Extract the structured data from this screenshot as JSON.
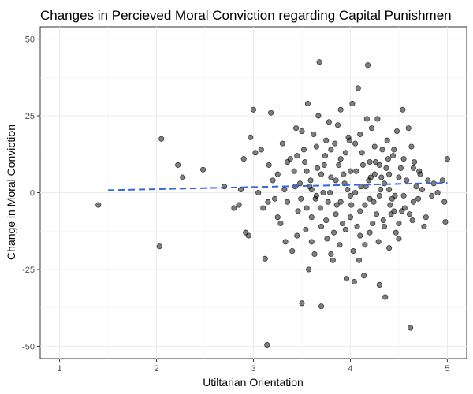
{
  "chart_data": {
    "type": "scatter",
    "title": "Changes in Percieved Moral Conviction regarding Capital Punishmen",
    "xlabel": "Utiltarian Orientation",
    "ylabel": "Change in Moral Conviction",
    "xlim": [
      0.8,
      5.2
    ],
    "ylim": [
      -54,
      54
    ],
    "x_ticks": [
      1,
      2,
      3,
      4,
      5
    ],
    "y_ticks": [
      -50,
      -25,
      0,
      25,
      50
    ],
    "grid": true,
    "point_color": "#000000",
    "point_opacity": 0.5,
    "trend_line": {
      "style": "dashed",
      "color": "#3366e6",
      "x": [
        1.5,
        5.0
      ],
      "y": [
        0.8,
        3.2
      ]
    },
    "points": [
      {
        "x": 1.4,
        "y": -4
      },
      {
        "x": 2.03,
        "y": -17.5
      },
      {
        "x": 2.05,
        "y": 17.5
      },
      {
        "x": 2.22,
        "y": 9
      },
      {
        "x": 2.27,
        "y": 5
      },
      {
        "x": 2.48,
        "y": 7.5
      },
      {
        "x": 2.7,
        "y": 2
      },
      {
        "x": 2.8,
        "y": -5
      },
      {
        "x": 2.85,
        "y": -4
      },
      {
        "x": 2.87,
        "y": 1
      },
      {
        "x": 2.9,
        "y": 11
      },
      {
        "x": 2.92,
        "y": -13
      },
      {
        "x": 2.95,
        "y": -14
      },
      {
        "x": 2.97,
        "y": 18
      },
      {
        "x": 3.0,
        "y": 27
      },
      {
        "x": 3.02,
        "y": 13
      },
      {
        "x": 3.05,
        "y": 0
      },
      {
        "x": 3.08,
        "y": 14
      },
      {
        "x": 3.1,
        "y": -5
      },
      {
        "x": 3.12,
        "y": -21.5
      },
      {
        "x": 3.14,
        "y": -49.5
      },
      {
        "x": 3.16,
        "y": 9
      },
      {
        "x": 3.18,
        "y": 26
      },
      {
        "x": 3.2,
        "y": 4
      },
      {
        "x": 3.22,
        "y": -2
      },
      {
        "x": 3.25,
        "y": 6
      },
      {
        "x": 3.28,
        "y": -10
      },
      {
        "x": 3.3,
        "y": 16
      },
      {
        "x": 3.32,
        "y": 1
      },
      {
        "x": 3.35,
        "y": -3
      },
      {
        "x": 3.38,
        "y": 11
      },
      {
        "x": 3.4,
        "y": -19
      },
      {
        "x": 3.42,
        "y": 7
      },
      {
        "x": 3.44,
        "y": 21
      },
      {
        "x": 3.46,
        "y": -6
      },
      {
        "x": 3.48,
        "y": 3
      },
      {
        "x": 3.5,
        "y": -36
      },
      {
        "x": 3.52,
        "y": 14
      },
      {
        "x": 3.54,
        "y": -12
      },
      {
        "x": 3.56,
        "y": 29
      },
      {
        "x": 3.58,
        "y": 2
      },
      {
        "x": 3.6,
        "y": -8
      },
      {
        "x": 3.62,
        "y": 19
      },
      {
        "x": 3.64,
        "y": -2
      },
      {
        "x": 3.66,
        "y": 8
      },
      {
        "x": 3.68,
        "y": 42.5
      },
      {
        "x": 3.7,
        "y": -37
      },
      {
        "x": 3.72,
        "y": 0
      },
      {
        "x": 3.74,
        "y": 12
      },
      {
        "x": 3.76,
        "y": -15
      },
      {
        "x": 3.78,
        "y": 23
      },
      {
        "x": 3.8,
        "y": 5
      },
      {
        "x": 3.82,
        "y": -22
      },
      {
        "x": 3.84,
        "y": 16
      },
      {
        "x": 3.86,
        "y": -4
      },
      {
        "x": 3.88,
        "y": 9
      },
      {
        "x": 3.9,
        "y": 27
      },
      {
        "x": 3.92,
        "y": -10
      },
      {
        "x": 3.94,
        "y": 3
      },
      {
        "x": 3.96,
        "y": -28
      },
      {
        "x": 3.98,
        "y": 18
      },
      {
        "x": 4.0,
        "y": -1
      },
      {
        "x": 4.02,
        "y": 29
      },
      {
        "x": 4.04,
        "y": -29
      },
      {
        "x": 4.06,
        "y": 7
      },
      {
        "x": 4.08,
        "y": 34
      },
      {
        "x": 4.1,
        "y": -6
      },
      {
        "x": 4.12,
        "y": 13
      },
      {
        "x": 4.14,
        "y": -27
      },
      {
        "x": 4.16,
        "y": 2
      },
      {
        "x": 4.18,
        "y": 41.5
      },
      {
        "x": 4.2,
        "y": -13
      },
      {
        "x": 4.22,
        "y": 21
      },
      {
        "x": 4.24,
        "y": -3
      },
      {
        "x": 4.26,
        "y": 10
      },
      {
        "x": 4.28,
        "y": 24
      },
      {
        "x": 4.3,
        "y": -30
      },
      {
        "x": 4.32,
        "y": 5
      },
      {
        "x": 4.34,
        "y": -9
      },
      {
        "x": 4.36,
        "y": -34
      },
      {
        "x": 4.38,
        "y": 17
      },
      {
        "x": 4.4,
        "y": 1
      },
      {
        "x": 4.42,
        "y": -7
      },
      {
        "x": 4.44,
        "y": 12
      },
      {
        "x": 4.46,
        "y": -1
      },
      {
        "x": 4.48,
        "y": 20
      },
      {
        "x": 4.5,
        "y": -15
      },
      {
        "x": 4.52,
        "y": 8
      },
      {
        "x": 4.54,
        "y": 27
      },
      {
        "x": 4.56,
        "y": -5
      },
      {
        "x": 4.58,
        "y": 4
      },
      {
        "x": 4.6,
        "y": 21
      },
      {
        "x": 4.62,
        "y": -44
      },
      {
        "x": 4.64,
        "y": -9
      },
      {
        "x": 4.66,
        "y": 10
      },
      {
        "x": 4.68,
        "y": 2
      },
      {
        "x": 4.7,
        "y": -2
      },
      {
        "x": 4.72,
        "y": 6
      },
      {
        "x": 4.74,
        "y": 1
      },
      {
        "x": 4.78,
        "y": -8
      },
      {
        "x": 4.8,
        "y": 4
      },
      {
        "x": 4.84,
        "y": -1
      },
      {
        "x": 4.9,
        "y": 0
      },
      {
        "x": 4.95,
        "y": 4
      },
      {
        "x": 4.97,
        "y": -3
      },
      {
        "x": 4.98,
        "y": -9.5
      },
      {
        "x": 5.0,
        "y": 11
      },
      {
        "x": 3.45,
        "y": 12
      },
      {
        "x": 3.55,
        "y": -5
      },
      {
        "x": 3.65,
        "y": 15
      },
      {
        "x": 3.75,
        "y": -9
      },
      {
        "x": 3.85,
        "y": 4
      },
      {
        "x": 3.95,
        "y": -12
      },
      {
        "x": 4.05,
        "y": 16
      },
      {
        "x": 4.15,
        "y": -4
      },
      {
        "x": 4.25,
        "y": 6
      },
      {
        "x": 4.35,
        "y": -11
      },
      {
        "x": 4.45,
        "y": 14
      },
      {
        "x": 4.55,
        "y": -1
      },
      {
        "x": 4.65,
        "y": 8
      },
      {
        "x": 3.5,
        "y": 20
      },
      {
        "x": 3.6,
        "y": -16
      },
      {
        "x": 3.7,
        "y": 6
      },
      {
        "x": 3.8,
        "y": -20
      },
      {
        "x": 3.9,
        "y": 11
      },
      {
        "x": 4.0,
        "y": -8
      },
      {
        "x": 4.1,
        "y": 19
      },
      {
        "x": 4.2,
        "y": -2
      },
      {
        "x": 4.3,
        "y": 9
      },
      {
        "x": 4.4,
        "y": -18
      },
      {
        "x": 4.5,
        "y": 5
      },
      {
        "x": 3.25,
        "y": -8
      },
      {
        "x": 3.35,
        "y": 10
      },
      {
        "x": 3.45,
        "y": -14
      },
      {
        "x": 3.55,
        "y": 7
      },
      {
        "x": 3.65,
        "y": -1
      },
      {
        "x": 3.75,
        "y": 17
      },
      {
        "x": 3.85,
        "y": -7
      },
      {
        "x": 3.95,
        "y": 13
      },
      {
        "x": 4.05,
        "y": 0
      },
      {
        "x": 4.15,
        "y": -17
      },
      {
        "x": 4.25,
        "y": 15
      },
      {
        "x": 4.35,
        "y": 3
      },
      {
        "x": 4.45,
        "y": -6
      },
      {
        "x": 4.55,
        "y": 11
      },
      {
        "x": 4.65,
        "y": -3
      },
      {
        "x": 3.6,
        "y": 1
      },
      {
        "x": 3.7,
        "y": -11
      },
      {
        "x": 3.8,
        "y": 14
      },
      {
        "x": 3.9,
        "y": -3
      },
      {
        "x": 4.0,
        "y": 7
      },
      {
        "x": 4.1,
        "y": -14
      },
      {
        "x": 4.2,
        "y": 10
      },
      {
        "x": 4.3,
        "y": -1
      },
      {
        "x": 4.4,
        "y": 6
      },
      {
        "x": 4.5,
        "y": -10
      },
      {
        "x": 3.15,
        "y": -3
      },
      {
        "x": 3.33,
        "y": -16
      },
      {
        "x": 3.43,
        "y": 2
      },
      {
        "x": 3.53,
        "y": 10
      },
      {
        "x": 3.63,
        "y": -20
      },
      {
        "x": 3.73,
        "y": 9
      },
      {
        "x": 3.83,
        "y": -13
      },
      {
        "x": 3.93,
        "y": 6
      },
      {
        "x": 4.03,
        "y": -19
      },
      {
        "x": 4.13,
        "y": 9
      },
      {
        "x": 4.23,
        "y": -10
      },
      {
        "x": 4.33,
        "y": 14
      },
      {
        "x": 4.43,
        "y": -2
      },
      {
        "x": 4.53,
        "y": -6
      },
      {
        "x": 4.63,
        "y": 15
      },
      {
        "x": 3.87,
        "y": 22
      },
      {
        "x": 3.97,
        "y": 1
      },
      {
        "x": 4.07,
        "y": -11
      },
      {
        "x": 4.17,
        "y": 24
      },
      {
        "x": 4.27,
        "y": -7
      },
      {
        "x": 4.37,
        "y": 8
      },
      {
        "x": 4.47,
        "y": -13
      },
      {
        "x": 3.57,
        "y": -25
      },
      {
        "x": 3.67,
        "y": 25
      },
      {
        "x": 3.77,
        "y": -3
      },
      {
        "x": 4.09,
        "y": -22
      },
      {
        "x": 4.19,
        "y": 4
      },
      {
        "x": 4.29,
        "y": -16
      },
      {
        "x": 4.39,
        "y": 11
      },
      {
        "x": 3.89,
        "y": -17
      },
      {
        "x": 3.99,
        "y": 17
      },
      {
        "x": 4.11,
        "y": 2
      },
      {
        "x": 3.79,
        "y": 0
      },
      {
        "x": 3.69,
        "y": -5
      },
      {
        "x": 4.01,
        "y": -4
      },
      {
        "x": 4.21,
        "y": 5
      },
      {
        "x": 4.31,
        "y": 1
      },
      {
        "x": 4.41,
        "y": -4
      },
      {
        "x": 3.59,
        "y": 4
      },
      {
        "x": 3.49,
        "y": -2
      },
      {
        "x": 4.61,
        "y": -7
      },
      {
        "x": 4.71,
        "y": 7
      },
      {
        "x": 4.76,
        "y": -11
      },
      {
        "x": 4.86,
        "y": 3
      }
    ]
  }
}
